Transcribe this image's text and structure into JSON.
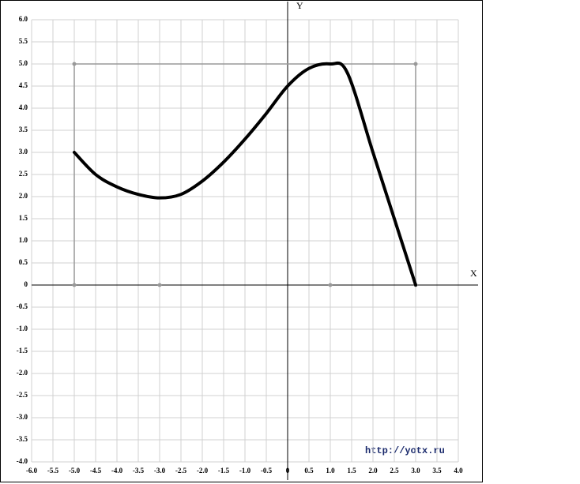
{
  "chart_data": {
    "type": "line",
    "x_label": "X",
    "y_label": "Y",
    "watermark": "http://yotx.ru",
    "xlim": [
      -6,
      4
    ],
    "ylim": [
      -4,
      6
    ],
    "xticks": [
      {
        "value": -6,
        "label": "-6.0"
      },
      -5.5,
      {
        "value": -5,
        "label": "-5.0"
      },
      -4.5,
      {
        "value": -4,
        "label": "-4.0"
      },
      -3.5,
      {
        "value": -3,
        "label": "-3.0"
      },
      -2.5,
      {
        "value": -2,
        "label": "-2.0"
      },
      -1.5,
      {
        "value": -1,
        "label": "-1.0"
      },
      -0.5,
      0,
      0.5,
      {
        "value": 1,
        "label": "1.0"
      },
      1.5,
      {
        "value": 2,
        "label": "2.0"
      },
      2.5,
      {
        "value": 3,
        "label": "3.0"
      },
      3.5,
      {
        "value": 4,
        "label": "4.0"
      }
    ],
    "yticks": [
      {
        "value": 6,
        "label": "6.0"
      },
      5.5,
      {
        "value": 5,
        "label": "5.0"
      },
      4.5,
      {
        "value": 4,
        "label": "4.0"
      },
      3.5,
      {
        "value": 3,
        "label": "3.0"
      },
      2.5,
      {
        "value": 2,
        "label": "2.0"
      },
      1.5,
      {
        "value": 1,
        "label": "1.0"
      },
      0.5,
      0,
      -0.5,
      {
        "value": -1,
        "label": "-1.0"
      },
      -1.5,
      {
        "value": -2,
        "label": "-2.0"
      },
      -2.5,
      {
        "value": -3,
        "label": "-3.0"
      },
      -3.5,
      {
        "value": -4,
        "label": "-4.0"
      }
    ],
    "grid": true,
    "x": [
      -5,
      -4.5,
      -4,
      -3.5,
      -3,
      -2.5,
      -2,
      -1.5,
      -1,
      -0.5,
      0,
      0.5,
      1,
      1.4,
      2,
      2.5,
      3
    ],
    "series": [
      {
        "color": "#000000",
        "values": [
          3,
          2.5,
          2.22,
          2.05,
          1.97,
          2.05,
          2.35,
          2.78,
          3.3,
          3.88,
          4.5,
          4.9,
          5,
          4.8,
          3.0,
          1.5,
          0
        ]
      }
    ],
    "guide": {
      "color": "#999999",
      "x": [
        -5,
        -5,
        3,
        3
      ],
      "y": [
        0,
        5,
        5,
        0
      ]
    },
    "guide_points": {
      "color": "#999999",
      "x": [
        -5,
        -3,
        1,
        -5,
        3,
        3
      ],
      "y": [
        0,
        0,
        0,
        5,
        5,
        0
      ]
    }
  }
}
